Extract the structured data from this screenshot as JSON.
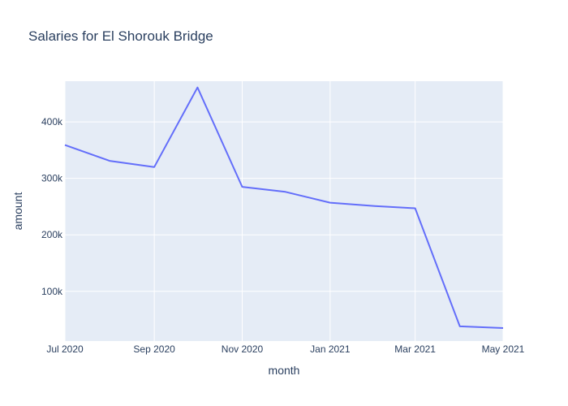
{
  "chart_data": {
    "type": "line",
    "title": "Salaries for El Shorouk Bridge",
    "xlabel": "month",
    "ylabel": "amount",
    "x": [
      "2020-07-01",
      "2020-08-01",
      "2020-09-01",
      "2020-10-01",
      "2020-11-01",
      "2020-12-01",
      "2021-01-01",
      "2021-02-01",
      "2021-03-01",
      "2021-04-01",
      "2021-05-01"
    ],
    "series": [
      {
        "values": [
          359000,
          331000,
          320000,
          461000,
          285000,
          276000,
          257000,
          251000,
          247000,
          38000,
          35000
        ]
      }
    ],
    "xlim": [
      "2020-07-01",
      "2021-05-01"
    ],
    "ylim": [
      12000,
      472000
    ],
    "x_ticks": [
      {
        "value": "2020-07-01",
        "label": "Jul 2020"
      },
      {
        "value": "2020-09-01",
        "label": "Sep 2020"
      },
      {
        "value": "2020-11-01",
        "label": "Nov 2020"
      },
      {
        "value": "2021-01-01",
        "label": "Jan 2021"
      },
      {
        "value": "2021-03-01",
        "label": "Mar 2021"
      },
      {
        "value": "2021-05-01",
        "label": "May 2021"
      }
    ],
    "y_ticks": [
      {
        "value": 100000,
        "label": "100k"
      },
      {
        "value": 200000,
        "label": "200k"
      },
      {
        "value": 300000,
        "label": "300k"
      },
      {
        "value": 400000,
        "label": "400k"
      }
    ],
    "grid": true,
    "colors": {
      "line": "#636efa",
      "plot_bg": "#e5ecf6",
      "grid": "#ffffff",
      "text": "#2a3f5f"
    }
  }
}
